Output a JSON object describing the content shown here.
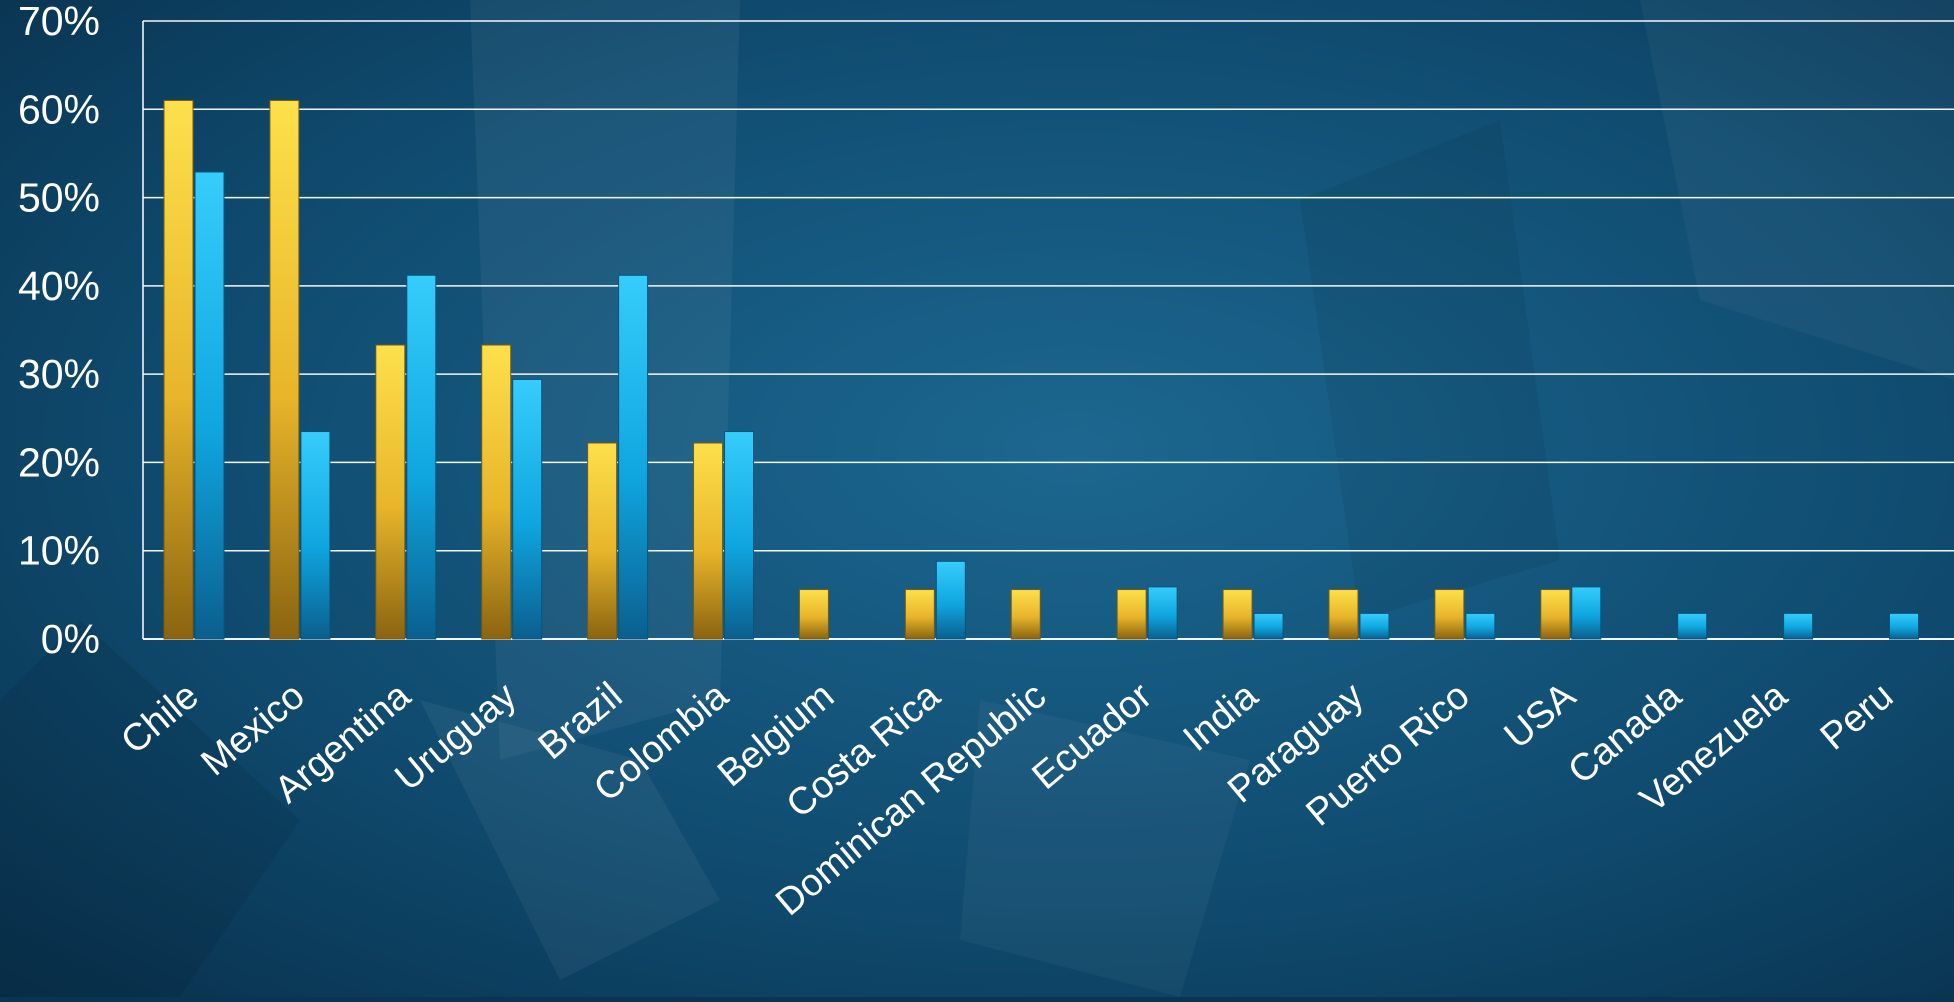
{
  "chart_data": {
    "type": "bar",
    "categories": [
      "Chile",
      "Mexico",
      "Argentina",
      "Uruguay",
      "Brazil",
      "Colombia",
      "Belgium",
      "Costa Rica",
      "Dominican Republic",
      "Ecuador",
      "India",
      "Paraguay",
      "Puerto Rico",
      "USA",
      "Canada",
      "Venezuela",
      "Peru"
    ],
    "series": [
      {
        "color": "#f2c12e",
        "values": [
          61,
          61,
          33.3,
          33.3,
          22.2,
          22.2,
          5.6,
          5.6,
          5.6,
          5.6,
          5.6,
          5.6,
          5.6,
          5.6,
          0,
          0,
          0
        ]
      },
      {
        "color": "#12aee8",
        "values": [
          52.9,
          23.5,
          41.2,
          29.4,
          41.2,
          23.5,
          0,
          8.8,
          0,
          5.9,
          2.9,
          2.9,
          2.9,
          5.9,
          2.9,
          2.9,
          2.9
        ]
      }
    ],
    "y_ticks": [
      "0%",
      "10%",
      "20%",
      "30%",
      "40%",
      "50%",
      "60%",
      "70%"
    ],
    "ylim": [
      0,
      70
    ],
    "grid": true,
    "legend": "none"
  }
}
